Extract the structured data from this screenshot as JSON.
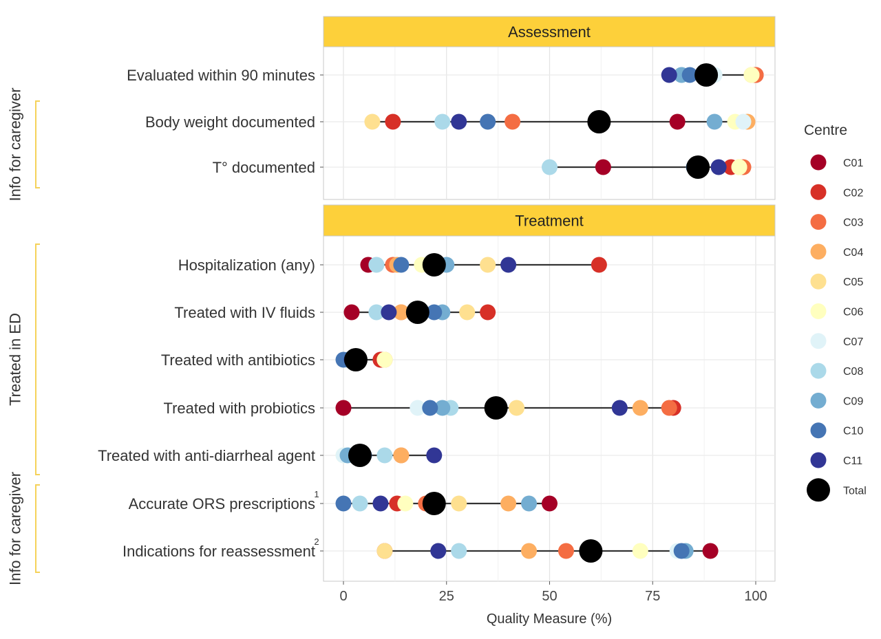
{
  "chart_data": {
    "type": "scatter",
    "xlabel": "Quality Measure (%)",
    "xlim": [
      -5,
      105
    ],
    "xticks": [
      "0",
      "25",
      "50",
      "75",
      "100"
    ],
    "xtick_values": [
      0,
      25,
      50,
      75,
      100
    ],
    "legend": {
      "title": "Centre",
      "placement": "right",
      "entries": [
        {
          "name": "C01",
          "color": "#a50026"
        },
        {
          "name": "C02",
          "color": "#d73027"
        },
        {
          "name": "C03",
          "color": "#f46d43"
        },
        {
          "name": "C04",
          "color": "#fdae61"
        },
        {
          "name": "C05",
          "color": "#fee090"
        },
        {
          "name": "C06",
          "color": "#ffffbf"
        },
        {
          "name": "C07",
          "color": "#e0f3f8"
        },
        {
          "name": "C08",
          "color": "#abd9e9"
        },
        {
          "name": "C09",
          "color": "#74add1"
        },
        {
          "name": "C10",
          "color": "#4575b4"
        },
        {
          "name": "C11",
          "color": "#313695"
        },
        {
          "name": "Total",
          "color": "#000000"
        }
      ]
    },
    "panels": [
      {
        "title": "Assessment",
        "rows": [
          {
            "label": "Evaluated within 90 minutes",
            "sup": "",
            "values": {
              "C01": 100,
              "C02": 100,
              "C03": 100,
              "C04": 99,
              "C05": 99,
              "C06": 99,
              "C07": 90,
              "C08": 82,
              "C09": 82,
              "C10": 84,
              "C11": 79,
              "Total": 88
            }
          },
          {
            "label": "Body weight documented",
            "sup": "",
            "values": {
              "C01": 81,
              "C02": 12,
              "C03": 41,
              "C04": 98,
              "C05": 7,
              "C06": 95,
              "C07": 97,
              "C08": 24,
              "C09": 90,
              "C10": 35,
              "C11": 28,
              "Total": 62
            }
          },
          {
            "label": "T° documented",
            "sup": "",
            "values": {
              "C01": 63,
              "C02": 94,
              "C03": 97,
              "C04": 96,
              "C05": 96,
              "C06": 96,
              "C07": 85,
              "C08": 50,
              "C09": 85,
              "C10": 85,
              "C11": 91,
              "Total": 86
            }
          }
        ]
      },
      {
        "title": "Treatment",
        "rows": [
          {
            "label": "Hospitalization (any)",
            "sup": "",
            "values": {
              "C01": 6,
              "C02": 62,
              "C03": 12,
              "C04": 13,
              "C05": 35,
              "C06": 19,
              "C07": 8,
              "C08": 8,
              "C09": 25,
              "C10": 14,
              "C11": 40,
              "Total": 22
            }
          },
          {
            "label": "Treated with IV fluids",
            "sup": "",
            "values": {
              "C01": 2,
              "C02": 35,
              "C03": 14,
              "C04": 14,
              "C05": 30,
              "C06": 18,
              "C07": 8,
              "C08": 8,
              "C09": 24,
              "C10": 22,
              "C11": 11,
              "Total": 18
            }
          },
          {
            "label": "Treated with antibiotics",
            "sup": "",
            "values": {
              "C01": 9,
              "C02": 9,
              "C03": 10,
              "C04": 10,
              "C05": 10,
              "C06": 10,
              "C07": 3,
              "C08": 2,
              "C09": 1,
              "C10": 0,
              "C11": 2,
              "Total": 3
            }
          },
          {
            "label": "Treated with probiotics",
            "sup": "",
            "values": {
              "C01": 0,
              "C02": 80,
              "C03": 79,
              "C04": 72,
              "C05": 42,
              "C06": 37,
              "C07": 18,
              "C08": 26,
              "C09": 24,
              "C10": 21,
              "C11": 67,
              "Total": 37
            }
          },
          {
            "label": "Treated with anti-diarrheal agent",
            "sup": "",
            "values": {
              "C01": 4,
              "C02": 4,
              "C03": 14,
              "C04": 14,
              "C05": 4,
              "C06": 0,
              "C07": 0,
              "C08": 10,
              "C09": 1,
              "C10": 5,
              "C11": 22,
              "Total": 4
            }
          },
          {
            "label": "Accurate ORS prescriptions",
            "sup": "1",
            "values": {
              "C01": 50,
              "C02": 13,
              "C03": 20,
              "C04": 40,
              "C05": 28,
              "C06": 15,
              "C07": 4,
              "C08": 4,
              "C09": 45,
              "C10": 0,
              "C11": 9,
              "Total": 22
            }
          },
          {
            "label": "Indications for reassessment",
            "sup": "2",
            "values": {
              "C01": 89,
              "C02": 10,
              "C03": 54,
              "C04": 45,
              "C05": 10,
              "C06": 72,
              "C07": 81,
              "C08": 28,
              "C09": 83,
              "C10": 82,
              "C11": 23,
              "Total": 60
            }
          }
        ]
      }
    ],
    "groups": [
      {
        "label": "Info for caregiver",
        "rows": [
          "Body weight documented",
          "T° documented"
        ]
      },
      {
        "label": "Treated  in ED",
        "rows": [
          "Hospitalization (any)",
          "Treated with anti-diarrheal agent"
        ]
      },
      {
        "label": "Info for caregiver",
        "rows": [
          "Accurate ORS prescriptions",
          "Indications for reassessment"
        ]
      }
    ],
    "grid": true
  }
}
